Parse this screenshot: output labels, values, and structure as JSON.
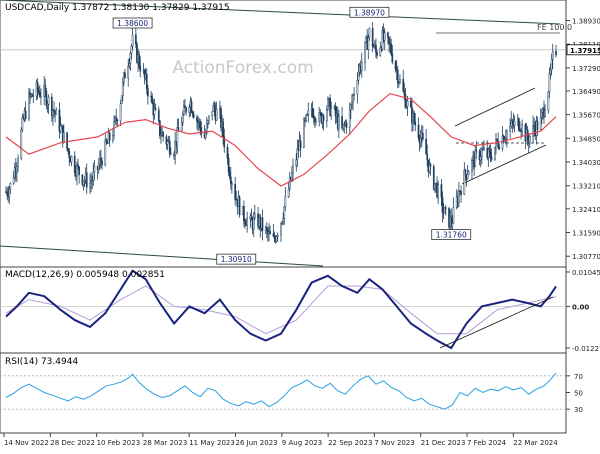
{
  "chart_data": [
    {
      "type": "candlestick",
      "panel": "price",
      "symbol_header": "USDCAD,Daily  1.37872 1.38130 1.37829 1.37915",
      "watermark": "ActionForex.com",
      "y_ticks": [
        "1.38930",
        "1.38110",
        "1.37290",
        "1.36490",
        "1.35670",
        "1.34850",
        "1.34030",
        "1.33210",
        "1.32410",
        "1.31590",
        "1.30770"
      ],
      "ylim": [
        1.305,
        1.395
      ],
      "last_price": "1.37915",
      "fe_label": "FE 100.0",
      "annotations": [
        {
          "text": "1.38600",
          "x": "2023-03-10",
          "y": 1.386
        },
        {
          "text": "1.38970",
          "x": "2023-10-13",
          "y": 1.3897
        },
        {
          "text": "1.30910",
          "x": "2023-06-13",
          "y": 1.3091
        },
        {
          "text": "1.31760",
          "x": "2023-12-27",
          "y": 1.3176
        }
      ],
      "close_series": [
        [
          "2022-11-14",
          1.33
        ],
        [
          "2022-11-18",
          1.332
        ],
        [
          "2022-11-24",
          1.341
        ],
        [
          "2022-11-30",
          1.355
        ],
        [
          "2022-12-05",
          1.362
        ],
        [
          "2022-12-12",
          1.365
        ],
        [
          "2022-12-19",
          1.364
        ],
        [
          "2022-12-28",
          1.358
        ],
        [
          "2023-01-03",
          1.352
        ],
        [
          "2023-01-09",
          1.345
        ],
        [
          "2023-01-16",
          1.339
        ],
        [
          "2023-01-23",
          1.335
        ],
        [
          "2023-01-30",
          1.333
        ],
        [
          "2023-02-06",
          1.338
        ],
        [
          "2023-02-13",
          1.345
        ],
        [
          "2023-02-21",
          1.352
        ],
        [
          "2023-02-27",
          1.362
        ],
        [
          "2023-03-03",
          1.371
        ],
        [
          "2023-03-10",
          1.382
        ],
        [
          "2023-03-16",
          1.375
        ],
        [
          "2023-03-22",
          1.368
        ],
        [
          "2023-03-28",
          1.36
        ],
        [
          "2023-04-04",
          1.351
        ],
        [
          "2023-04-11",
          1.347
        ],
        [
          "2023-04-17",
          1.345
        ],
        [
          "2023-04-24",
          1.355
        ],
        [
          "2023-05-01",
          1.362
        ],
        [
          "2023-05-08",
          1.355
        ],
        [
          "2023-05-15",
          1.349
        ],
        [
          "2023-05-22",
          1.359
        ],
        [
          "2023-05-29",
          1.356
        ],
        [
          "2023-06-05",
          1.341
        ],
        [
          "2023-06-12",
          1.329
        ],
        [
          "2023-06-19",
          1.322
        ],
        [
          "2023-06-26",
          1.319
        ],
        [
          "2023-07-03",
          1.32
        ],
        [
          "2023-07-10",
          1.316
        ],
        [
          "2023-07-17",
          1.313
        ],
        [
          "2023-07-24",
          1.32
        ],
        [
          "2023-07-31",
          1.331
        ],
        [
          "2023-08-07",
          1.342
        ],
        [
          "2023-08-14",
          1.352
        ],
        [
          "2023-08-21",
          1.359
        ],
        [
          "2023-08-28",
          1.355
        ],
        [
          "2023-09-05",
          1.36
        ],
        [
          "2023-09-11",
          1.357
        ],
        [
          "2023-09-18",
          1.351
        ],
        [
          "2023-09-25",
          1.357
        ],
        [
          "2023-10-02",
          1.371
        ],
        [
          "2023-10-06",
          1.375
        ],
        [
          "2023-10-13",
          1.385
        ],
        [
          "2023-10-19",
          1.378
        ],
        [
          "2023-10-25",
          1.383
        ],
        [
          "2023-11-01",
          1.38
        ],
        [
          "2023-11-07",
          1.372
        ],
        [
          "2023-11-13",
          1.364
        ],
        [
          "2023-11-20",
          1.357
        ],
        [
          "2023-11-27",
          1.351
        ],
        [
          "2023-12-04",
          1.343
        ],
        [
          "2023-12-08",
          1.336
        ],
        [
          "2023-12-14",
          1.331
        ],
        [
          "2023-12-20",
          1.323
        ],
        [
          "2023-12-27",
          1.319
        ],
        [
          "2024-01-03",
          1.33
        ],
        [
          "2024-01-10",
          1.337
        ],
        [
          "2024-01-17",
          1.341
        ],
        [
          "2024-01-24",
          1.344
        ],
        [
          "2024-01-31",
          1.342
        ],
        [
          "2024-02-07",
          1.347
        ],
        [
          "2024-02-14",
          1.35
        ],
        [
          "2024-02-21",
          1.353
        ],
        [
          "2024-02-28",
          1.354
        ],
        [
          "2024-03-06",
          1.348
        ],
        [
          "2024-03-12",
          1.352
        ],
        [
          "2024-03-18",
          1.354
        ],
        [
          "2024-03-21",
          1.359
        ],
        [
          "2024-03-26",
          1.368
        ],
        [
          "2024-03-29",
          1.376
        ],
        [
          "2024-04-01",
          1.3792
        ]
      ],
      "ma_series": [
        [
          "2022-11-14",
          1.349
        ],
        [
          "2022-12-05",
          1.343
        ],
        [
          "2023-01-03",
          1.347
        ],
        [
          "2023-02-06",
          1.349
        ],
        [
          "2023-03-03",
          1.354
        ],
        [
          "2023-03-22",
          1.355
        ],
        [
          "2023-04-11",
          1.352
        ],
        [
          "2023-05-01",
          1.35
        ],
        [
          "2023-05-22",
          1.351
        ],
        [
          "2023-06-12",
          1.346
        ],
        [
          "2023-07-03",
          1.338
        ],
        [
          "2023-07-24",
          1.332
        ],
        [
          "2023-08-14",
          1.336
        ],
        [
          "2023-09-05",
          1.343
        ],
        [
          "2023-09-25",
          1.35
        ],
        [
          "2023-10-13",
          1.358
        ],
        [
          "2023-11-01",
          1.364
        ],
        [
          "2023-11-20",
          1.362
        ],
        [
          "2023-12-08",
          1.356
        ],
        [
          "2023-12-27",
          1.349
        ],
        [
          "2024-01-17",
          1.346
        ],
        [
          "2024-02-07",
          1.347
        ],
        [
          "2024-02-28",
          1.349
        ],
        [
          "2024-03-18",
          1.351
        ],
        [
          "2024-04-01",
          1.356
        ]
      ]
    },
    {
      "type": "line",
      "panel": "macd",
      "label": "MACD(12,26,9) 0.005948 0.002851",
      "y_ticks": [
        "0.010457",
        "0.00",
        "-0.012276"
      ],
      "ylim": [
        -0.0128,
        0.011
      ],
      "series": [
        {
          "values": [
            [
              "2022-11-14",
              -0.003
            ],
            [
              "2022-11-24",
              0.0
            ],
            [
              "2022-12-05",
              0.004
            ],
            [
              "2022-12-19",
              0.003
            ],
            [
              "2023-01-03",
              -0.001
            ],
            [
              "2023-01-16",
              -0.004
            ],
            [
              "2023-01-30",
              -0.006
            ],
            [
              "2023-02-13",
              -0.002
            ],
            [
              "2023-02-27",
              0.005
            ],
            [
              "2023-03-10",
              0.0105
            ],
            [
              "2023-03-22",
              0.008
            ],
            [
              "2023-04-04",
              0.001
            ],
            [
              "2023-04-17",
              -0.005
            ],
            [
              "2023-05-01",
              0.0
            ],
            [
              "2023-05-15",
              -0.002
            ],
            [
              "2023-05-29",
              0.002
            ],
            [
              "2023-06-12",
              -0.004
            ],
            [
              "2023-06-26",
              -0.008
            ],
            [
              "2023-07-10",
              -0.01
            ],
            [
              "2023-07-24",
              -0.008
            ],
            [
              "2023-08-07",
              -0.001
            ],
            [
              "2023-08-21",
              0.007
            ],
            [
              "2023-09-05",
              0.009
            ],
            [
              "2023-09-18",
              0.006
            ],
            [
              "2023-10-02",
              0.004
            ],
            [
              "2023-10-13",
              0.008
            ],
            [
              "2023-10-25",
              0.005
            ],
            [
              "2023-11-07",
              0.0
            ],
            [
              "2023-11-20",
              -0.005
            ],
            [
              "2023-12-04",
              -0.008
            ],
            [
              "2023-12-14",
              -0.01
            ],
            [
              "2023-12-27",
              -0.0122
            ],
            [
              "2024-01-10",
              -0.005
            ],
            [
              "2024-01-24",
              0.0
            ],
            [
              "2024-02-07",
              0.001
            ],
            [
              "2024-02-21",
              0.002
            ],
            [
              "2024-03-06",
              0.001
            ],
            [
              "2024-03-18",
              0.0
            ],
            [
              "2024-03-26",
              0.003
            ],
            [
              "2024-04-01",
              0.0059
            ]
          ]
        },
        {
          "values": [
            [
              "2022-11-14",
              -0.002
            ],
            [
              "2022-12-05",
              0.002
            ],
            [
              "2023-01-03",
              0.0
            ],
            [
              "2023-01-30",
              -0.004
            ],
            [
              "2023-02-27",
              0.002
            ],
            [
              "2023-03-22",
              0.006
            ],
            [
              "2023-04-17",
              0.0
            ],
            [
              "2023-05-15",
              -0.001
            ],
            [
              "2023-06-12",
              -0.003
            ],
            [
              "2023-07-10",
              -0.008
            ],
            [
              "2023-08-07",
              -0.004
            ],
            [
              "2023-09-05",
              0.006
            ],
            [
              "2023-10-02",
              0.006
            ],
            [
              "2023-10-25",
              0.005
            ],
            [
              "2023-11-20",
              -0.002
            ],
            [
              "2023-12-14",
              -0.008
            ],
            [
              "2024-01-10",
              -0.008
            ],
            [
              "2024-02-07",
              -0.001
            ],
            [
              "2024-03-06",
              0.001
            ],
            [
              "2024-04-01",
              0.0029
            ]
          ]
        }
      ]
    },
    {
      "type": "line",
      "panel": "rsi",
      "label": "RSI(14) 73.4944",
      "y_ticks": [
        "70",
        "50",
        "30"
      ],
      "ylim": [
        5,
        95
      ],
      "levels": [
        70,
        30
      ],
      "series": [
        {
          "values": [
            [
              "2022-11-14",
              44
            ],
            [
              "2022-11-21",
              49
            ],
            [
              "2022-11-28",
              56
            ],
            [
              "2022-12-05",
              60
            ],
            [
              "2022-12-12",
              55
            ],
            [
              "2022-12-19",
              50
            ],
            [
              "2022-12-28",
              46
            ],
            [
              "2023-01-03",
              43
            ],
            [
              "2023-01-10",
              40
            ],
            [
              "2023-01-17",
              45
            ],
            [
              "2023-01-24",
              42
            ],
            [
              "2023-01-31",
              46
            ],
            [
              "2023-02-07",
              52
            ],
            [
              "2023-02-14",
              58
            ],
            [
              "2023-02-21",
              60
            ],
            [
              "2023-02-28",
              63
            ],
            [
              "2023-03-07",
              68
            ],
            [
              "2023-03-10",
              72
            ],
            [
              "2023-03-16",
              62
            ],
            [
              "2023-03-23",
              54
            ],
            [
              "2023-03-30",
              48
            ],
            [
              "2023-04-06",
              44
            ],
            [
              "2023-04-13",
              46
            ],
            [
              "2023-04-20",
              52
            ],
            [
              "2023-04-27",
              58
            ],
            [
              "2023-05-04",
              50
            ],
            [
              "2023-05-11",
              45
            ],
            [
              "2023-05-18",
              55
            ],
            [
              "2023-05-25",
              52
            ],
            [
              "2023-06-01",
              42
            ],
            [
              "2023-06-08",
              37
            ],
            [
              "2023-06-15",
              34
            ],
            [
              "2023-06-22",
              39
            ],
            [
              "2023-06-29",
              36
            ],
            [
              "2023-07-06",
              40
            ],
            [
              "2023-07-13",
              33
            ],
            [
              "2023-07-20",
              38
            ],
            [
              "2023-07-27",
              46
            ],
            [
              "2023-08-03",
              56
            ],
            [
              "2023-08-10",
              60
            ],
            [
              "2023-08-17",
              65
            ],
            [
              "2023-08-24",
              58
            ],
            [
              "2023-08-31",
              55
            ],
            [
              "2023-09-07",
              61
            ],
            [
              "2023-09-14",
              52
            ],
            [
              "2023-09-21",
              48
            ],
            [
              "2023-09-28",
              58
            ],
            [
              "2023-10-05",
              66
            ],
            [
              "2023-10-12",
              70
            ],
            [
              "2023-10-19",
              60
            ],
            [
              "2023-10-26",
              64
            ],
            [
              "2023-11-02",
              56
            ],
            [
              "2023-11-09",
              52
            ],
            [
              "2023-11-16",
              44
            ],
            [
              "2023-11-23",
              40
            ],
            [
              "2023-11-30",
              43
            ],
            [
              "2023-12-07",
              36
            ],
            [
              "2023-12-14",
              33
            ],
            [
              "2023-12-21",
              30
            ],
            [
              "2023-12-28",
              35
            ],
            [
              "2024-01-04",
              50
            ],
            [
              "2024-01-11",
              46
            ],
            [
              "2024-01-18",
              55
            ],
            [
              "2024-01-25",
              50
            ],
            [
              "2024-02-01",
              54
            ],
            [
              "2024-02-08",
              52
            ],
            [
              "2024-02-15",
              57
            ],
            [
              "2024-02-22",
              53
            ],
            [
              "2024-02-29",
              56
            ],
            [
              "2024-03-07",
              48
            ],
            [
              "2024-03-14",
              54
            ],
            [
              "2024-03-21",
              58
            ],
            [
              "2024-03-26",
              64
            ],
            [
              "2024-04-01",
              73.5
            ]
          ]
        }
      ]
    }
  ],
  "x_axis": {
    "labels": [
      "14 Nov 2022",
      "28 Dec 2022",
      "10 Feb 2023",
      "28 Mar 2023",
      "11 May 2023",
      "26 Jun 2023",
      "9 Aug 2023",
      "22 Sep 2023",
      "7 Nov 2023",
      "21 Dec 2023",
      "7 Feb 2024",
      "22 Mar 2024"
    ]
  },
  "colors": {
    "candle": "#1f3f5f",
    "ma": "#e8434c",
    "macd": "#1a237e",
    "signal": "#b39ddb",
    "rsi": "#29a0e0",
    "trendline": "#2e4a3a",
    "grid": "#e6e6e6",
    "last_price_bg": "#ffffff"
  }
}
